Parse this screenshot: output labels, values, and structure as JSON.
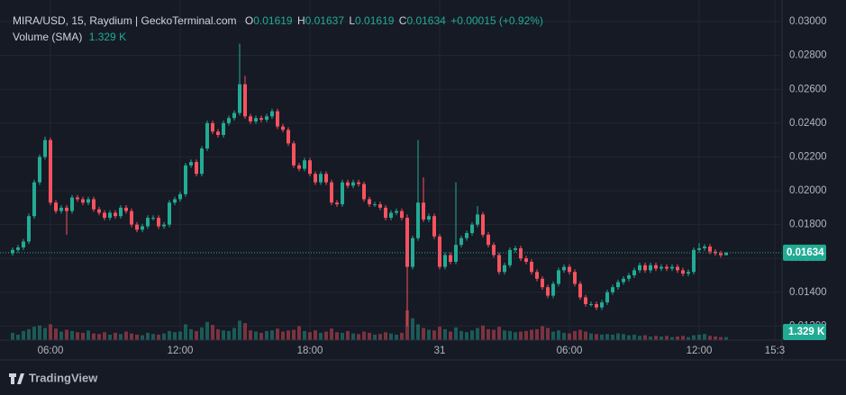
{
  "chart_data": {
    "type": "candlestick",
    "title": "MIRA/USD, 15, Raydium | GeckoTerminal.com",
    "ohlc_labels": [
      "O",
      "H",
      "L",
      "C"
    ],
    "change": "+0.00015 (+0.92%)",
    "volume_title": "Volume (SMA)",
    "volume_sma_label": "1.329 K",
    "footer": "TradingView",
    "up_color": "#22ab94",
    "down_color": "#f7525f",
    "grid": true,
    "ylim": [
      0.01117,
      0.03128
    ],
    "yticks": [
      {
        "value": 0.012,
        "label": "0.01200"
      },
      {
        "value": 0.014,
        "label": "0.01400"
      },
      {
        "value": 0.016,
        "label": "0.01600"
      },
      {
        "value": 0.018,
        "label": "0.01800"
      },
      {
        "value": 0.02,
        "label": "0.02000"
      },
      {
        "value": 0.022,
        "label": "0.02200"
      },
      {
        "value": 0.024,
        "label": "0.02400"
      },
      {
        "value": 0.026,
        "label": "0.02600"
      },
      {
        "value": 0.028,
        "label": "0.02800"
      },
      {
        "value": 0.03,
        "label": "0.03000"
      }
    ],
    "volume_lim": [
      0,
      56000
    ],
    "categories": [
      null,
      null,
      null,
      null,
      null,
      null,
      null,
      "06:00",
      null,
      null,
      null,
      null,
      null,
      null,
      null,
      null,
      null,
      null,
      null,
      null,
      null,
      null,
      null,
      null,
      null,
      null,
      null,
      null,
      null,
      null,
      null,
      "12:00",
      null,
      null,
      null,
      null,
      null,
      null,
      null,
      null,
      null,
      null,
      null,
      null,
      null,
      null,
      null,
      null,
      null,
      null,
      null,
      null,
      null,
      null,
      null,
      "18:00",
      null,
      null,
      null,
      null,
      null,
      null,
      null,
      null,
      null,
      null,
      null,
      null,
      null,
      null,
      null,
      null,
      null,
      null,
      null,
      null,
      null,
      null,
      null,
      "31",
      null,
      null,
      null,
      null,
      null,
      null,
      null,
      null,
      null,
      null,
      null,
      null,
      null,
      null,
      null,
      null,
      null,
      null,
      null,
      null,
      null,
      null,
      null,
      "06:00",
      null,
      null,
      null,
      null,
      null,
      null,
      null,
      null,
      null,
      null,
      null,
      null,
      null,
      null,
      null,
      null,
      null,
      null,
      null,
      null,
      null,
      null,
      null,
      "12:00",
      null,
      null,
      null,
      null,
      null,
      null,
      null,
      null,
      null,
      null,
      null,
      null,
      null,
      "15:3"
    ],
    "open": [
      0.0163,
      0.0165,
      0.01665,
      0.017,
      0.0185,
      0.0205,
      0.022,
      0.023,
      0.0193,
      0.0188,
      0.019,
      0.0188,
      0.0196,
      0.0195,
      0.0193,
      0.0195,
      0.0189,
      0.0187,
      0.0184,
      0.0187,
      0.0185,
      0.019,
      0.0188,
      0.018,
      0.0177,
      0.0179,
      0.0184,
      0.0184,
      0.0179,
      0.018,
      0.0193,
      0.0195,
      0.0198,
      0.0215,
      0.0217,
      0.021,
      0.0225,
      0.024,
      0.0235,
      0.0233,
      0.024,
      0.0243,
      0.0246,
      0.0263,
      0.0244,
      0.0241,
      0.0243,
      0.0242,
      0.0244,
      0.0247,
      0.0238,
      0.0236,
      0.0228,
      0.0215,
      0.0213,
      0.0218,
      0.021,
      0.0205,
      0.021,
      0.0205,
      0.0193,
      0.0192,
      0.0205,
      0.0203,
      0.0205,
      0.0204,
      0.0195,
      0.0192,
      0.0192,
      0.019,
      0.0184,
      0.0187,
      0.0188,
      0.0184,
      0.0155,
      0.0172,
      0.0193,
      0.0183,
      0.0185,
      0.0173,
      0.0155,
      0.0162,
      0.0158,
      0.0168,
      0.0172,
      0.0175,
      0.018,
      0.0186,
      0.0174,
      0.0168,
      0.0162,
      0.0152,
      0.0156,
      0.0165,
      0.0166,
      0.016,
      0.0158,
      0.0152,
      0.0148,
      0.0143,
      0.0138,
      0.0145,
      0.0153,
      0.0155,
      0.0152,
      0.0145,
      0.0137,
      0.0133,
      0.0133,
      0.0131,
      0.0134,
      0.014,
      0.0143,
      0.0146,
      0.0148,
      0.015,
      0.0153,
      0.0156,
      0.0153,
      0.0156,
      0.0154,
      0.0155,
      0.0154,
      0.0155,
      0.0153,
      0.0151,
      0.0152,
      0.0165,
      0.0166,
      0.0167,
      0.0164,
      0.0163,
      0.01619,
      null,
      null,
      null,
      null,
      null,
      null,
      null,
      null,
      null
    ],
    "high": [
      0.01665,
      0.0168,
      0.01715,
      0.01865,
      0.02065,
      0.02215,
      0.0232,
      0.02315,
      0.01945,
      0.01915,
      0.01915,
      0.01975,
      0.01975,
      0.01965,
      0.01965,
      0.01965,
      0.01905,
      0.01885,
      0.01885,
      0.01885,
      0.01915,
      0.01915,
      0.01895,
      0.01815,
      0.01805,
      0.01855,
      0.01855,
      0.01855,
      0.01815,
      0.01945,
      0.01965,
      0.01995,
      0.02165,
      0.02185,
      0.02185,
      0.02265,
      0.02415,
      0.02415,
      0.02365,
      0.02415,
      0.02445,
      0.02475,
      0.0287,
      0.0268,
      0.02455,
      0.02445,
      0.02445,
      0.02455,
      0.02485,
      0.02485,
      0.02395,
      0.02375,
      0.02295,
      0.02165,
      0.02195,
      0.02195,
      0.02115,
      0.02115,
      0.02115,
      0.02065,
      0.01945,
      0.02065,
      0.02065,
      0.02065,
      0.02065,
      0.02055,
      0.01965,
      0.01935,
      0.01935,
      0.01915,
      0.01885,
      0.01895,
      0.01895,
      0.0186,
      0.01735,
      0.023,
      0.0208,
      0.01865,
      0.01865,
      0.01745,
      0.01635,
      0.01635,
      0.0205,
      0.01735,
      0.01765,
      0.01815,
      0.0191,
      0.01875,
      0.01755,
      0.01695,
      0.01635,
      0.01575,
      0.01665,
      0.01675,
      0.01675,
      0.01615,
      0.01595,
      0.01535,
      0.01495,
      0.01445,
      0.01465,
      0.01545,
      0.01565,
      0.01565,
      0.01535,
      0.01465,
      0.01385,
      0.01345,
      0.01345,
      0.01355,
      0.01415,
      0.01445,
      0.01475,
      0.01495,
      0.01515,
      0.01545,
      0.01575,
      0.01575,
      0.01575,
      0.01575,
      0.01565,
      0.01565,
      0.01565,
      0.01565,
      0.01545,
      0.01535,
      0.01665,
      0.0169,
      0.01685,
      0.01685,
      0.01655,
      0.01645,
      0.01637,
      null,
      null,
      null,
      null,
      null,
      null,
      null,
      null,
      null
    ],
    "low": [
      0.01615,
      0.01635,
      0.0165,
      0.01685,
      0.01835,
      0.02035,
      0.02185,
      0.01915,
      0.01865,
      0.01865,
      0.0174,
      0.01865,
      0.01935,
      0.01915,
      0.01915,
      0.01875,
      0.01855,
      0.01825,
      0.01825,
      0.01835,
      0.01835,
      0.01865,
      0.01785,
      0.01755,
      0.01755,
      0.01775,
      0.01825,
      0.01775,
      0.01775,
      0.01785,
      0.01915,
      0.01935,
      0.01965,
      0.02135,
      0.02085,
      0.02085,
      0.02235,
      0.02335,
      0.02315,
      0.02315,
      0.02385,
      0.02415,
      0.02445,
      0.02425,
      0.02395,
      0.02395,
      0.02405,
      0.02405,
      0.02425,
      0.02365,
      0.02345,
      0.02265,
      0.02135,
      0.02115,
      0.02115,
      0.02085,
      0.02035,
      0.02035,
      0.02035,
      0.01915,
      0.01905,
      0.01905,
      0.02015,
      0.02015,
      0.02025,
      0.01935,
      0.01905,
      0.01905,
      0.01885,
      0.01825,
      0.01825,
      0.01855,
      0.01825,
      0.012,
      0.01535,
      0.01705,
      0.01815,
      0.01815,
      0.01715,
      0.01535,
      0.01535,
      0.01565,
      0.01565,
      0.01665,
      0.01705,
      0.01735,
      0.01785,
      0.01725,
      0.01665,
      0.01605,
      0.01505,
      0.01505,
      0.01545,
      0.01635,
      0.01585,
      0.01565,
      0.01505,
      0.01465,
      0.01415,
      0.01365,
      0.01365,
      0.01435,
      0.01515,
      0.01505,
      0.01435,
      0.01355,
      0.01315,
      0.01315,
      0.01295,
      0.01295,
      0.01325,
      0.01385,
      0.01415,
      0.01445,
      0.01465,
      0.01485,
      0.01515,
      0.01515,
      0.01515,
      0.01525,
      0.01525,
      0.01525,
      0.01525,
      0.01515,
      0.01495,
      0.01495,
      0.01505,
      0.01635,
      0.01645,
      0.01625,
      0.01615,
      0.01605,
      0.01619,
      null,
      null,
      null,
      null,
      null,
      null,
      null,
      null,
      null
    ],
    "close": [
      0.0165,
      0.01665,
      0.017,
      0.0185,
      0.0205,
      0.022,
      0.023,
      0.0193,
      0.0188,
      0.019,
      0.0188,
      0.0196,
      0.0195,
      0.0193,
      0.0195,
      0.0189,
      0.0187,
      0.0184,
      0.0187,
      0.0185,
      0.019,
      0.0188,
      0.018,
      0.0177,
      0.0179,
      0.0184,
      0.0184,
      0.0179,
      0.018,
      0.0193,
      0.0195,
      0.0198,
      0.0215,
      0.0217,
      0.021,
      0.0225,
      0.024,
      0.0235,
      0.0233,
      0.024,
      0.0243,
      0.0246,
      0.0263,
      0.0244,
      0.0241,
      0.0243,
      0.0242,
      0.0244,
      0.0247,
      0.0238,
      0.0236,
      0.0228,
      0.0215,
      0.0213,
      0.0218,
      0.021,
      0.0205,
      0.021,
      0.0205,
      0.0193,
      0.0192,
      0.0205,
      0.0203,
      0.0205,
      0.0204,
      0.0195,
      0.0192,
      0.0192,
      0.019,
      0.0184,
      0.0187,
      0.0188,
      0.0184,
      0.0155,
      0.0172,
      0.0193,
      0.0183,
      0.0185,
      0.0173,
      0.0155,
      0.0162,
      0.0158,
      0.0168,
      0.0172,
      0.0175,
      0.018,
      0.0186,
      0.0174,
      0.0168,
      0.0162,
      0.0152,
      0.0156,
      0.0165,
      0.0166,
      0.016,
      0.0158,
      0.0152,
      0.0148,
      0.0143,
      0.0138,
      0.0145,
      0.0153,
      0.0155,
      0.0152,
      0.0145,
      0.0137,
      0.0133,
      0.0133,
      0.0131,
      0.0134,
      0.014,
      0.0143,
      0.0146,
      0.0148,
      0.015,
      0.0153,
      0.0156,
      0.0153,
      0.0156,
      0.0154,
      0.0155,
      0.0154,
      0.0155,
      0.0153,
      0.0151,
      0.0152,
      0.0165,
      0.0166,
      0.0167,
      0.0164,
      0.0163,
      0.01619,
      0.01634,
      null,
      null,
      null,
      null,
      null,
      null,
      null,
      null,
      null
    ],
    "volume": [
      1200,
      900,
      1500,
      1800,
      2200,
      2400,
      2000,
      2600,
      1900,
      1400,
      1700,
      1500,
      1300,
      1200,
      1600,
      1100,
      1000,
      1300,
      900,
      1200,
      1000,
      1400,
      1100,
      900,
      800,
      1200,
      1000,
      900,
      1100,
      1500,
      1300,
      1400,
      2600,
      1800,
      1500,
      2100,
      3000,
      2500,
      1800,
      1600,
      1500,
      2000,
      3200,
      2800,
      1600,
      1400,
      1200,
      1500,
      1600,
      1900,
      1400,
      1600,
      1700,
      2300,
      1500,
      1300,
      1600,
      1200,
      1400,
      1900,
      1300,
      1200,
      1500,
      1100,
      1000,
      1400,
      1200,
      900,
      1000,
      1300,
      1100,
      900,
      1200,
      4900,
      3600,
      2600,
      2000,
      1700,
      1600,
      2200,
      1800,
      1400,
      2100,
      1500,
      1300,
      1600,
      2000,
      2400,
      1800,
      1700,
      2200,
      1600,
      1500,
      1300,
      1400,
      1500,
      1700,
      1800,
      2300,
      2000,
      1400,
      1600,
      1200,
      1100,
      1500,
      1700,
      1400,
      1100,
      1000,
      900,
      1000,
      900,
      1100,
      1000,
      800,
      900,
      700,
      800,
      600,
      700,
      600,
      700,
      500,
      600,
      700,
      500,
      800,
      900,
      1000,
      700,
      600,
      500,
      500,
      null,
      null,
      null,
      null,
      null,
      null,
      null,
      null,
      null
    ]
  }
}
